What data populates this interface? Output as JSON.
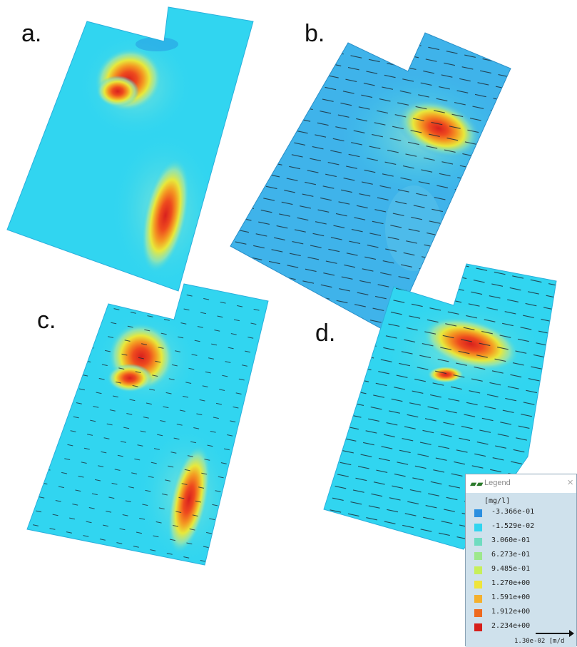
{
  "panel_labels": [
    "a.",
    "b.",
    "c.",
    "d."
  ],
  "colors": {
    "background": "#31d5f0",
    "b_background": "#3fb3ea",
    "hot_core": "#d8201e",
    "hot_mid": "#f49a22",
    "warm": "#e8e83b",
    "halo": "#8fe3c4",
    "arrow": "#1b2a34"
  },
  "legend": {
    "title": "Legend",
    "close_label": "×",
    "unit": "[mg/l]",
    "entries": [
      {
        "label": "-3.366e-01",
        "color": "#2b8fe0"
      },
      {
        "label": "-1.529e-02",
        "color": "#31d5f0"
      },
      {
        "label": "3.060e-01",
        "color": "#6fdcc0"
      },
      {
        "label": "6.273e-01",
        "color": "#9de88c"
      },
      {
        "label": "9.485e-01",
        "color": "#c7ef5a"
      },
      {
        "label": "1.270e+00",
        "color": "#efe53a"
      },
      {
        "label": "1.591e+00",
        "color": "#f4b02d"
      },
      {
        "label": "1.912e+00",
        "color": "#ee6a1f"
      },
      {
        "label": "2.234e+00",
        "color": "#d61f1b"
      }
    ],
    "velocity_scale": "1.30e-02 [m/d"
  }
}
